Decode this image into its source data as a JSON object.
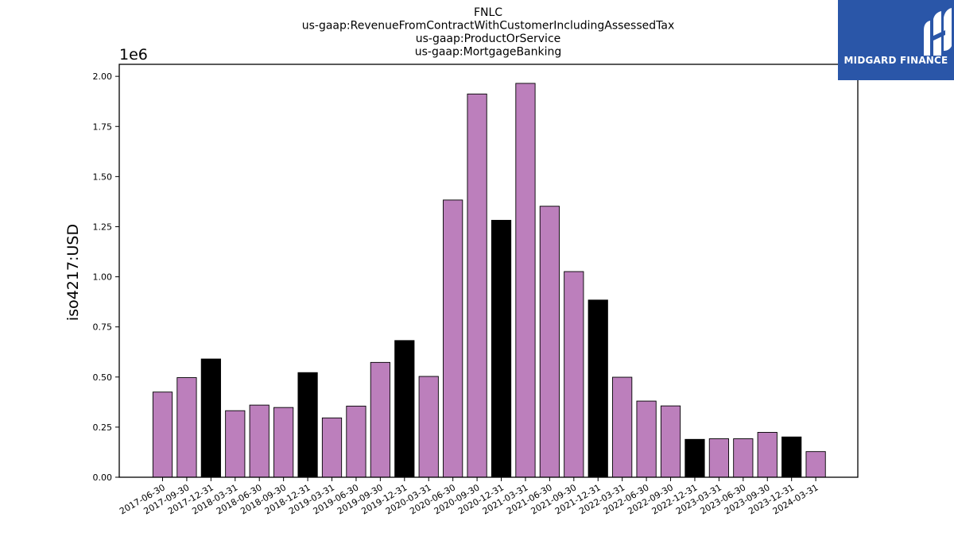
{
  "chart_data": {
    "type": "bar",
    "title_lines": [
      "FNLC",
      "us-gaap:RevenueFromContractWithCustomerIncludingAssessedTax",
      "us-gaap:ProductOrService",
      "us-gaap:MortgageBanking"
    ],
    "ylabel": "iso4217:USD",
    "y_offset_label": "1e6",
    "ylim": [
      0,
      2.06
    ],
    "yticks": [
      "0.00",
      "0.25",
      "0.50",
      "0.75",
      "1.00",
      "1.25",
      "1.50",
      "1.75",
      "2.00"
    ],
    "categories": [
      "2017-06-30",
      "2017-09-30",
      "2017-12-31",
      "2018-03-31",
      "2018-06-30",
      "2018-09-30",
      "2018-12-31",
      "2019-03-31",
      "2019-06-30",
      "2019-09-30",
      "2019-12-31",
      "2020-03-31",
      "2020-06-30",
      "2020-09-30",
      "2020-12-31",
      "2021-03-31",
      "2021-06-30",
      "2021-09-30",
      "2021-12-31",
      "2022-03-31",
      "2022-06-30",
      "2022-09-30",
      "2022-12-31",
      "2023-03-31",
      "2023-06-30",
      "2023-09-30",
      "2023-12-31",
      "2024-03-31"
    ],
    "values": [
      0.425,
      0.497,
      0.59,
      0.332,
      0.36,
      0.348,
      0.522,
      0.296,
      0.355,
      0.573,
      0.682,
      0.503,
      1.383,
      1.912,
      1.282,
      1.965,
      1.352,
      1.026,
      0.884,
      0.499,
      0.38,
      0.356,
      0.189,
      0.192,
      0.192,
      0.224,
      0.201,
      0.128
    ],
    "bar_colors": [
      "#bc7fbc",
      "#bc7fbc",
      "#000000",
      "#bc7fbc",
      "#bc7fbc",
      "#bc7fbc",
      "#000000",
      "#bc7fbc",
      "#bc7fbc",
      "#bc7fbc",
      "#000000",
      "#bc7fbc",
      "#bc7fbc",
      "#bc7fbc",
      "#000000",
      "#bc7fbc",
      "#bc7fbc",
      "#bc7fbc",
      "#000000",
      "#bc7fbc",
      "#bc7fbc",
      "#bc7fbc",
      "#000000",
      "#bc7fbc",
      "#bc7fbc",
      "#bc7fbc",
      "#000000",
      "#bc7fbc"
    ],
    "grid": false,
    "legend": "none"
  },
  "logo": {
    "text": "MIDGARD FINANCE",
    "background": "#2a56a8"
  }
}
